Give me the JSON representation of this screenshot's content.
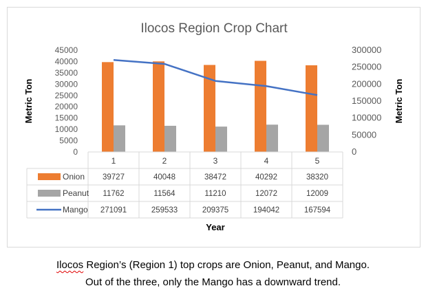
{
  "chart_data": {
    "type": "bar+line",
    "title": "Ilocos Region Crop Chart",
    "xlabel": "Year",
    "ylabel_left": "Metric Ton",
    "ylabel_right": "Metric Ton",
    "categories": [
      "1",
      "2",
      "3",
      "4",
      "5"
    ],
    "ylim_left": [
      0,
      45000
    ],
    "yticks_left": [
      "0",
      "5000",
      "10000",
      "15000",
      "20000",
      "25000",
      "30000",
      "35000",
      "40000",
      "45000"
    ],
    "ylim_right": [
      0,
      300000
    ],
    "yticks_right": [
      "0",
      "50000",
      "100000",
      "150000",
      "200000",
      "250000",
      "300000"
    ],
    "series": [
      {
        "name": "Onion",
        "kind": "bar",
        "axis": "left",
        "color": "#ed7d31",
        "values": [
          39727,
          40048,
          38472,
          40292,
          38320
        ],
        "labels": [
          "39727",
          "40048",
          "38472",
          "40292",
          "38320"
        ]
      },
      {
        "name": "Peanut",
        "kind": "bar",
        "axis": "left",
        "color": "#a5a5a5",
        "values": [
          11762,
          11564,
          11210,
          12072,
          12009
        ],
        "labels": [
          "11762",
          "11564",
          "11210",
          "12072",
          "12009"
        ]
      },
      {
        "name": "Mango",
        "kind": "line",
        "axis": "right",
        "color": "#4472c4",
        "values": [
          271091,
          259533,
          209375,
          194042,
          167594
        ],
        "labels": [
          "271091",
          "259533",
          "209375",
          "194042",
          "167594"
        ]
      }
    ],
    "legend": "data-table"
  },
  "caption": {
    "line1_word": "Ilocos",
    "line1_rest": " Region’s (Region 1) top crops are Onion, Peanut, and Mango.",
    "line2": "Out of the three, only the Mango has a downward trend."
  }
}
